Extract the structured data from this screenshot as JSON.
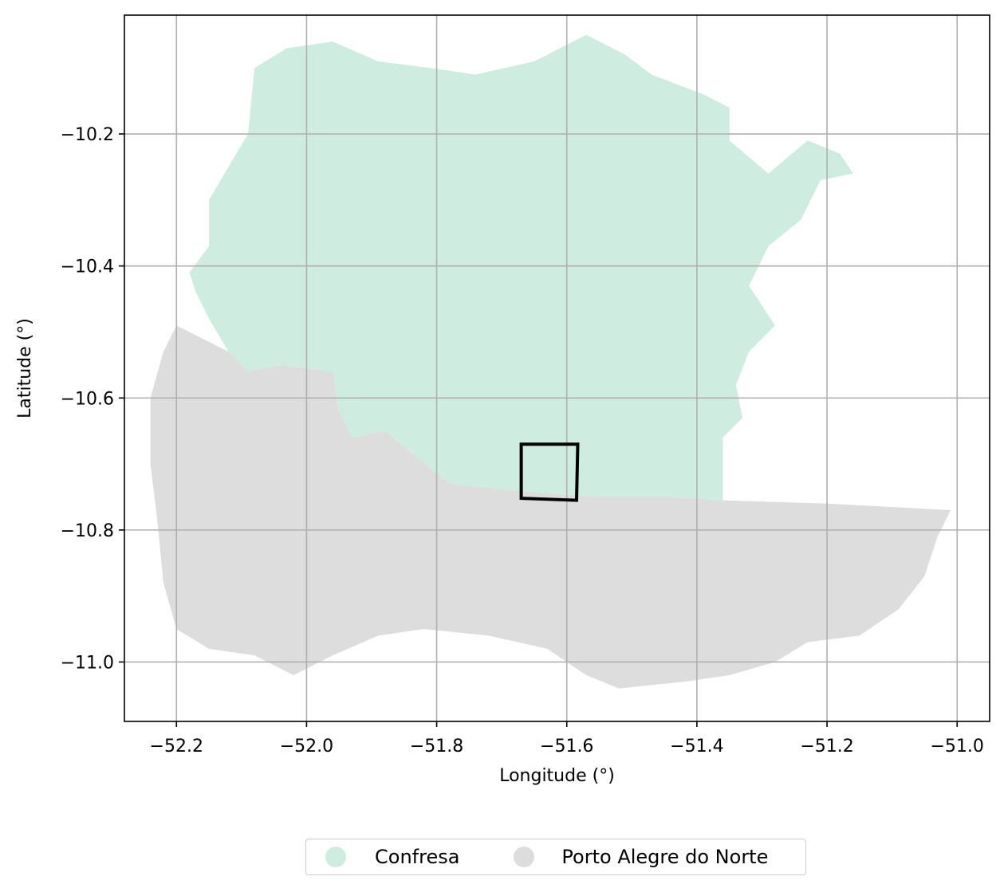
{
  "chart_data": {
    "type": "map",
    "xlabel": "Longitude (°)",
    "ylabel": "Latitude (°)",
    "xlim": [
      -52.28,
      -50.95
    ],
    "ylim": [
      -11.09,
      -10.02
    ],
    "xticks": [
      -52.2,
      -52.0,
      -51.8,
      -51.6,
      -51.4,
      -51.2,
      -51.0
    ],
    "yticks": [
      -10.2,
      -10.4,
      -10.6,
      -10.8,
      -11.0
    ],
    "xtick_labels": [
      "−52.2",
      "−52.0",
      "−51.8",
      "−51.6",
      "−51.4",
      "−51.2",
      "−51.0"
    ],
    "ytick_labels": [
      "−10.2",
      "−10.4",
      "−10.6",
      "−10.8",
      "−11.0"
    ],
    "grid": true,
    "legend_placement": "bottom-center",
    "regions": [
      {
        "name": "Confresa",
        "color": "#cfece0",
        "boundary": [
          [
            -52.17,
            -10.44
          ],
          [
            -52.15,
            -10.48
          ],
          [
            -52.12,
            -10.53
          ],
          [
            -52.09,
            -10.56
          ],
          [
            -52.04,
            -10.55
          ],
          [
            -51.96,
            -10.56
          ],
          [
            -51.95,
            -10.62
          ],
          [
            -51.93,
            -10.66
          ],
          [
            -51.88,
            -10.65
          ],
          [
            -51.83,
            -10.69
          ],
          [
            -51.78,
            -10.73
          ],
          [
            -51.68,
            -10.74
          ],
          [
            -51.55,
            -10.75
          ],
          [
            -51.44,
            -10.75
          ],
          [
            -51.36,
            -10.755
          ],
          [
            -51.36,
            -10.72
          ],
          [
            -51.36,
            -10.66
          ],
          [
            -51.33,
            -10.63
          ],
          [
            -51.34,
            -10.58
          ],
          [
            -51.32,
            -10.53
          ],
          [
            -51.28,
            -10.49
          ],
          [
            -51.32,
            -10.43
          ],
          [
            -51.29,
            -10.37
          ],
          [
            -51.24,
            -10.33
          ],
          [
            -51.21,
            -10.27
          ],
          [
            -51.16,
            -10.26
          ],
          [
            -51.18,
            -10.23
          ],
          [
            -51.23,
            -10.21
          ],
          [
            -51.29,
            -10.26
          ],
          [
            -51.35,
            -10.21
          ],
          [
            -51.35,
            -10.16
          ],
          [
            -51.39,
            -10.14
          ],
          [
            -51.47,
            -10.11
          ],
          [
            -51.51,
            -10.08
          ],
          [
            -51.57,
            -10.05
          ],
          [
            -51.65,
            -10.09
          ],
          [
            -51.74,
            -10.11
          ],
          [
            -51.81,
            -10.1
          ],
          [
            -51.89,
            -10.09
          ],
          [
            -51.96,
            -10.06
          ],
          [
            -52.03,
            -10.07
          ],
          [
            -52.08,
            -10.1
          ],
          [
            -52.09,
            -10.2
          ],
          [
            -52.12,
            -10.25
          ],
          [
            -52.15,
            -10.3
          ],
          [
            -52.15,
            -10.37
          ],
          [
            -52.18,
            -10.41
          ]
        ]
      },
      {
        "name": "Porto Alegre do Norte",
        "color": "#dddddd",
        "boundary": [
          [
            -52.2,
            -10.49
          ],
          [
            -52.16,
            -10.51
          ],
          [
            -52.12,
            -10.53
          ],
          [
            -52.09,
            -10.56
          ],
          [
            -52.04,
            -10.55
          ],
          [
            -51.96,
            -10.56
          ],
          [
            -51.95,
            -10.62
          ],
          [
            -51.93,
            -10.66
          ],
          [
            -51.88,
            -10.65
          ],
          [
            -51.83,
            -10.69
          ],
          [
            -51.78,
            -10.73
          ],
          [
            -51.68,
            -10.74
          ],
          [
            -51.55,
            -10.75
          ],
          [
            -51.44,
            -10.75
          ],
          [
            -51.36,
            -10.755
          ],
          [
            -51.2,
            -10.76
          ],
          [
            -51.01,
            -10.77
          ],
          [
            -51.03,
            -10.81
          ],
          [
            -51.05,
            -10.87
          ],
          [
            -51.09,
            -10.92
          ],
          [
            -51.15,
            -10.96
          ],
          [
            -51.23,
            -10.97
          ],
          [
            -51.28,
            -11.0
          ],
          [
            -51.35,
            -11.02
          ],
          [
            -51.42,
            -11.03
          ],
          [
            -51.52,
            -11.04
          ],
          [
            -51.57,
            -11.02
          ],
          [
            -51.63,
            -10.98
          ],
          [
            -51.72,
            -10.96
          ],
          [
            -51.82,
            -10.95
          ],
          [
            -51.89,
            -10.96
          ],
          [
            -51.96,
            -10.99
          ],
          [
            -52.02,
            -11.02
          ],
          [
            -52.08,
            -10.99
          ],
          [
            -52.15,
            -10.98
          ],
          [
            -52.2,
            -10.95
          ],
          [
            -52.22,
            -10.88
          ],
          [
            -52.23,
            -10.78
          ],
          [
            -52.24,
            -10.7
          ],
          [
            -52.24,
            -10.6
          ],
          [
            -52.22,
            -10.53
          ]
        ]
      }
    ],
    "study_area": {
      "edge_color": "#000000",
      "corners": [
        [
          -51.67,
          -10.67
        ],
        [
          -51.585,
          -10.67
        ],
        [
          -51.585,
          -10.755
        ],
        [
          -51.67,
          -10.755
        ]
      ]
    }
  },
  "legend": {
    "entries": [
      {
        "label": "Confresa",
        "color": "#cfece0"
      },
      {
        "label": "Porto Alegre do Norte",
        "color": "#dddddd"
      }
    ]
  }
}
